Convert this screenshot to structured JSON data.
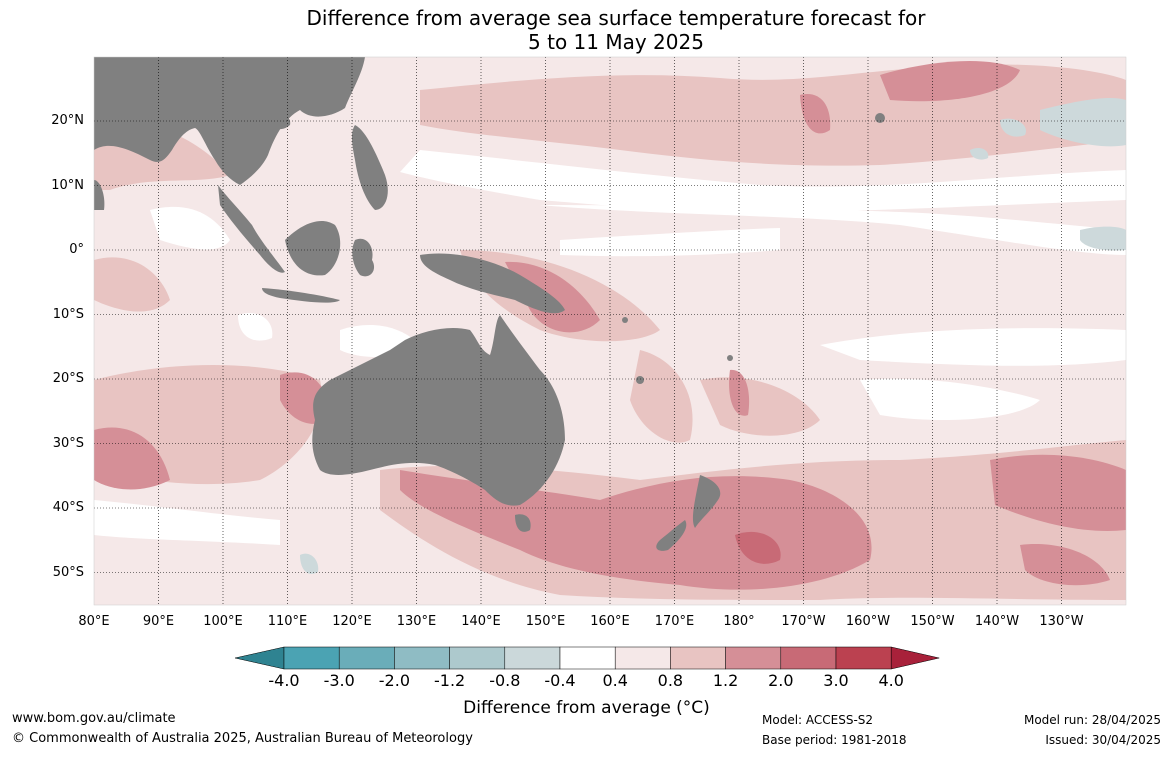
{
  "title": {
    "line1": "Difference from average sea surface temperature forecast for",
    "line2": "5 to 11 May 2025"
  },
  "map": {
    "longitude_labels": [
      "80°E",
      "90°E",
      "100°E",
      "110°E",
      "120°E",
      "130°E",
      "140°E",
      "150°E",
      "160°E",
      "170°E",
      "180°",
      "170°W",
      "160°W",
      "150°W",
      "140°W",
      "130°W"
    ],
    "latitude_labels": [
      "20°N",
      "10°N",
      "0°",
      "10°S",
      "20°S",
      "30°S",
      "40°S",
      "50°S"
    ],
    "colors": {
      "land": "#808080",
      "neutral": "#ffffff",
      "warm_0_4_0_8": "#f5e8e8",
      "warm_0_8_1_2": "#e8c4c2",
      "warm_1_2_2_0": "#d58f97",
      "warm_2_0_3_0": "#c86a76",
      "warm_3_0_4_0": "#bb4150",
      "cool_0_4_0_8": "#cdd9db"
    }
  },
  "colorbar": {
    "title": "Difference from average (°C)",
    "tick_labels": [
      "-4.0",
      "-3.0",
      "-2.0",
      "-1.2",
      "-0.8",
      "-0.4",
      "0.4",
      "0.8",
      "1.2",
      "2.0",
      "3.0",
      "4.0"
    ],
    "colors": [
      "#3f96a8",
      "#4ba3b3",
      "#6aadb9",
      "#8fbcc4",
      "#adc9cd",
      "#cbd8da",
      "#ffffff",
      "#f5e8e8",
      "#e8c4c2",
      "#d58f97",
      "#c86a76",
      "#bb4150"
    ],
    "low_arrow_color": "#2f8391",
    "high_arrow_color": "#a8213a"
  },
  "footer": {
    "website": "www.bom.gov.au/climate",
    "copyright": "© Commonwealth of Australia 2025, Australian Bureau of Meteorology",
    "model": "Model: ACCESS-S2",
    "base_period": "Base period: 1981-2018",
    "model_run": "Model run: 28/04/2025",
    "issued": "Issued: 30/04/2025"
  }
}
